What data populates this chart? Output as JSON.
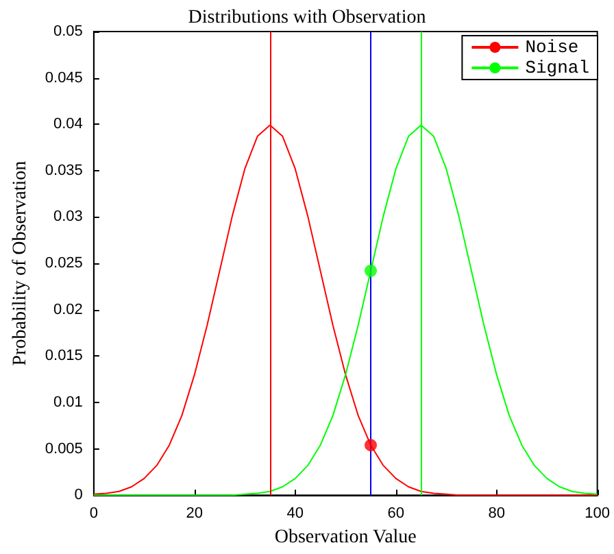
{
  "chart_data": {
    "type": "line",
    "title": "Distributions with Observation",
    "xlabel": "Observation Value",
    "ylabel": "Probability of Observation",
    "xlim": [
      0,
      100
    ],
    "xticks": [
      0,
      20,
      40,
      60,
      80,
      100
    ],
    "ylim": [
      0,
      0.05
    ],
    "yticks": [
      0,
      0.005,
      0.01,
      0.015,
      0.02,
      0.025,
      0.03,
      0.035,
      0.04,
      0.045,
      0.05
    ],
    "grid": false,
    "legend": "top right",
    "marker": "none",
    "line_style": "solid",
    "series": [
      {
        "name": "Noise",
        "color": "#ff0000",
        "x": [
          0,
          2.5,
          5,
          7.5,
          10,
          12.5,
          15,
          17.5,
          20,
          22.5,
          25,
          27.5,
          30,
          32.5,
          35,
          37.5,
          40,
          42.5,
          45,
          47.5,
          50,
          52.5,
          55,
          57.5,
          60,
          62.5,
          65,
          67.5,
          70,
          72.5,
          75,
          77.5,
          80,
          82.5,
          85,
          87.5,
          90,
          92.5,
          95,
          97.5,
          100
        ],
        "values": [
          0.0001,
          0.0002,
          0.0004,
          0.0009,
          0.0018,
          0.0032,
          0.0054,
          0.0086,
          0.013,
          0.0183,
          0.0242,
          0.0301,
          0.0352,
          0.0387,
          0.0399,
          0.0387,
          0.0352,
          0.0301,
          0.0242,
          0.0183,
          0.013,
          0.0086,
          0.0054,
          0.0032,
          0.0018,
          0.0009,
          0.0004,
          0.0002,
          0.0001,
          0,
          0,
          0,
          0,
          0,
          0,
          0,
          0,
          0,
          0,
          0,
          0
        ]
      },
      {
        "name": "Signal",
        "color": "#00ff00",
        "x": [
          0,
          2.5,
          5,
          7.5,
          10,
          12.5,
          15,
          17.5,
          20,
          22.5,
          25,
          27.5,
          30,
          32.5,
          35,
          37.5,
          40,
          42.5,
          45,
          47.5,
          50,
          52.5,
          55,
          57.5,
          60,
          62.5,
          65,
          67.5,
          70,
          72.5,
          75,
          77.5,
          80,
          82.5,
          85,
          87.5,
          90,
          92.5,
          95,
          97.5,
          100
        ],
        "values": [
          0,
          0,
          0,
          0,
          0,
          0,
          0,
          0,
          0,
          0,
          0,
          0,
          0.0001,
          0.0002,
          0.0004,
          0.0009,
          0.0018,
          0.0032,
          0.0054,
          0.0086,
          0.013,
          0.0183,
          0.0242,
          0.0301,
          0.0352,
          0.0387,
          0.0399,
          0.0387,
          0.0352,
          0.0301,
          0.0242,
          0.0183,
          0.013,
          0.0086,
          0.0054,
          0.0032,
          0.0018,
          0.0009,
          0.0004,
          0.0002,
          0.0001
        ]
      },
      {
        "type": "scatter",
        "marker": "circle",
        "color": "#00ff00",
        "x": [
          55
        ],
        "values": [
          0.0242
        ]
      },
      {
        "type": "scatter",
        "marker": "circle",
        "color": "#ff0000",
        "x": [
          55
        ],
        "values": [
          0.0054
        ]
      }
    ],
    "ref_lines": [
      {
        "axis": "x",
        "value": 35,
        "color": "#ff0000"
      },
      {
        "axis": "x",
        "value": 55,
        "color": "#0000ff"
      },
      {
        "axis": "x",
        "value": 65,
        "color": "#00ff00"
      }
    ]
  }
}
